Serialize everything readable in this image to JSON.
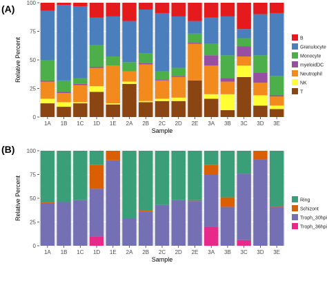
{
  "chart_data": [
    {
      "panel": "(A)",
      "type": "bar",
      "stacked": true,
      "xlabel": "Sample",
      "ylabel": "Relative Percent",
      "ylim": [
        0,
        100
      ],
      "yticks": [
        "0",
        "25",
        "50",
        "75",
        "100"
      ],
      "grid": true,
      "legend_position": "right",
      "categories": [
        "1A",
        "1B",
        "1C",
        "1D",
        "1E",
        "2A",
        "2B",
        "2C",
        "2D",
        "2E",
        "3A",
        "3B",
        "3C",
        "3D",
        "3E"
      ],
      "series": [
        {
          "name": "T",
          "color": "#8B4513",
          "values": [
            12,
            9,
            12,
            22,
            11,
            29,
            13,
            14,
            14,
            32,
            16,
            6,
            35,
            10,
            7
          ]
        },
        {
          "name": "NK",
          "color": "#FFFF33",
          "values": [
            4,
            4,
            1,
            5,
            1,
            2,
            1,
            2,
            3,
            0,
            4,
            14,
            10,
            9,
            3
          ]
        },
        {
          "name": "Neutrophil",
          "color": "#F28A1E",
          "values": [
            15,
            8,
            15,
            16,
            33,
            9,
            32,
            16,
            18,
            32,
            25,
            11,
            8,
            11,
            8
          ]
        },
        {
          "name": "myeloidDC",
          "color": "#984EA3",
          "values": [
            1,
            1,
            1,
            1,
            0,
            0,
            1,
            1,
            1,
            1,
            9,
            3,
            9,
            9,
            1
          ]
        },
        {
          "name": "Monocyte",
          "color": "#4DAF4A",
          "values": [
            18,
            10,
            5,
            19,
            8,
            8,
            9,
            7,
            7,
            8,
            10,
            20,
            7,
            15,
            17
          ]
        },
        {
          "name": "Granulocyte",
          "color": "#4A7EBD",
          "values": [
            43,
            66,
            63,
            24,
            35,
            36,
            38,
            51,
            45,
            11,
            23,
            34,
            8,
            36,
            55
          ]
        },
        {
          "name": "B",
          "color": "#E41A1C",
          "values": [
            7,
            2,
            3,
            13,
            12,
            16,
            6,
            9,
            12,
            16,
            13,
            12,
            23,
            10,
            9
          ]
        }
      ]
    },
    {
      "panel": "(B)",
      "type": "bar",
      "stacked": true,
      "xlabel": "Sample",
      "ylabel": "Relative Percent",
      "ylim": [
        0,
        100
      ],
      "yticks": [
        "0",
        "25",
        "50",
        "75",
        "100"
      ],
      "grid": true,
      "legend_position": "right",
      "categories": [
        "1A",
        "1B",
        "1C",
        "1D",
        "1E",
        "2A",
        "2B",
        "2C",
        "2D",
        "2E",
        "3A",
        "3B",
        "3C",
        "3D",
        "3E"
      ],
      "series": [
        {
          "name": "Troph_36hpi",
          "color": "#E7298A",
          "values": [
            0,
            0,
            0,
            10,
            0,
            0,
            0,
            0,
            0,
            0,
            20,
            0,
            6,
            0,
            0
          ]
        },
        {
          "name": "Troph_30hpi",
          "color": "#7570B3",
          "values": [
            45,
            46,
            48,
            50,
            90,
            29,
            36,
            43,
            48,
            47,
            55,
            41,
            70,
            91,
            41
          ]
        },
        {
          "name": "Schizont",
          "color": "#D95F02",
          "values": [
            1,
            0,
            0,
            25,
            10,
            0,
            1,
            0,
            0,
            1,
            10,
            10,
            0,
            9,
            1
          ]
        },
        {
          "name": "Ring",
          "color": "#3A9E78",
          "values": [
            54,
            54,
            52,
            15,
            0,
            71,
            63,
            57,
            52,
            52,
            15,
            49,
            24,
            0,
            58
          ]
        }
      ]
    }
  ]
}
